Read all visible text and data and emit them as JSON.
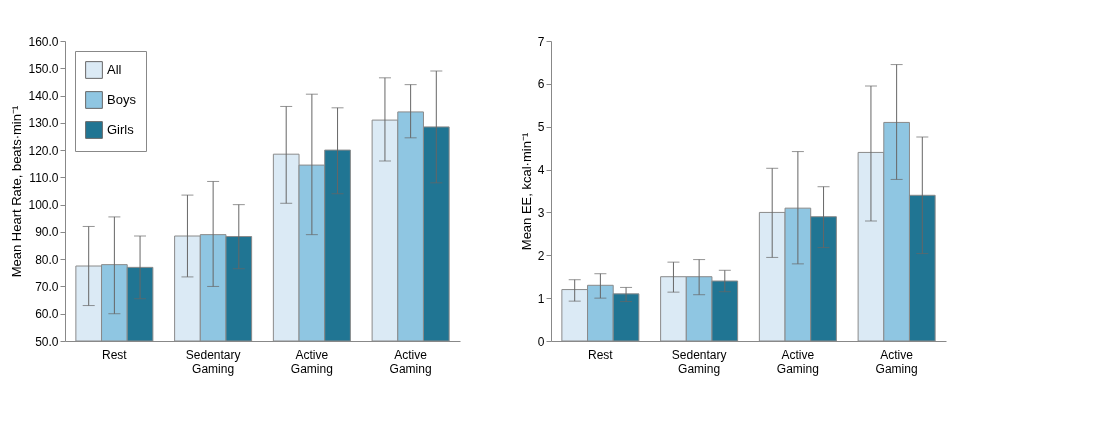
{
  "chart_data": [
    {
      "type": "bar",
      "ylabel": "Mean Heart Rate, beats·min⁻¹",
      "categories": [
        "Rest",
        "Sedentary Gaming",
        "Active Gaming",
        "Active Gaming"
      ],
      "series": [
        {
          "name": "All",
          "color": "#dbeaf5",
          "values": [
            77.5,
            88.5,
            118.5,
            131
          ],
          "errors": [
            [
              63,
              92
            ],
            [
              73.5,
              103.5
            ],
            [
              100.5,
              136
            ],
            [
              116,
              146.5
            ]
          ]
        },
        {
          "name": "Boys",
          "color": "#8fc6e2",
          "values": [
            78,
            89,
            114.5,
            134
          ],
          "errors": [
            [
              60,
              95.5
            ],
            [
              70,
              108.5
            ],
            [
              89,
              140.5
            ],
            [
              124.5,
              144
            ]
          ]
        },
        {
          "name": "Girls",
          "color": "#207593",
          "values": [
            77,
            88.3,
            120,
            128.5
          ],
          "errors": [
            [
              65.5,
              88.5
            ],
            [
              76.5,
              100
            ],
            [
              104,
              135.5
            ],
            [
              108,
              149
            ]
          ]
        }
      ],
      "ylim": [
        50,
        160
      ],
      "yticks": [
        {
          "value": 50,
          "label": "50.0"
        },
        {
          "value": 60,
          "label": "60.0"
        },
        {
          "value": 70,
          "label": "70.0"
        },
        {
          "value": 80,
          "label": "80.0"
        },
        {
          "value": 90,
          "label": "90.0"
        },
        {
          "value": 100,
          "label": "100.0"
        },
        {
          "value": 110,
          "label": "110.0"
        },
        {
          "value": 120,
          "label": "120.0"
        },
        {
          "value": 130,
          "label": "130.0"
        },
        {
          "value": 140,
          "label": "140.0"
        },
        {
          "value": 150,
          "label": "150.0"
        },
        {
          "value": 160,
          "label": "160.0"
        }
      ],
      "grid": false,
      "legend": "top left"
    },
    {
      "type": "bar",
      "ylabel": "Mean EE, kcal·min⁻¹",
      "categories": [
        "Rest",
        "Sedentary Gaming",
        "Active Gaming",
        "Active Gaming"
      ],
      "series": [
        {
          "name": "All",
          "color": "#dbeaf5",
          "values": [
            1.2,
            1.5,
            3.0,
            4.4
          ],
          "errors": [
            [
              0.93,
              1.43
            ],
            [
              1.14,
              1.84
            ],
            [
              1.95,
              4.03
            ],
            [
              2.8,
              5.95
            ]
          ]
        },
        {
          "name": "Boys",
          "color": "#8fc6e2",
          "values": [
            1.3,
            1.5,
            3.1,
            5.1
          ],
          "errors": [
            [
              1.0,
              1.57
            ],
            [
              1.08,
              1.9
            ],
            [
              1.8,
              4.42
            ],
            [
              3.77,
              6.45
            ]
          ]
        },
        {
          "name": "Girls",
          "color": "#207593",
          "values": [
            1.1,
            1.4,
            2.9,
            3.4
          ],
          "errors": [
            [
              0.92,
              1.25
            ],
            [
              1.15,
              1.65
            ],
            [
              2.18,
              3.6
            ],
            [
              2.04,
              4.76
            ]
          ]
        }
      ],
      "ylim": [
        0,
        7
      ],
      "yticks": [
        0,
        1,
        2,
        3,
        4,
        5,
        6,
        7
      ],
      "grid": false,
      "legend": "top left"
    }
  ]
}
